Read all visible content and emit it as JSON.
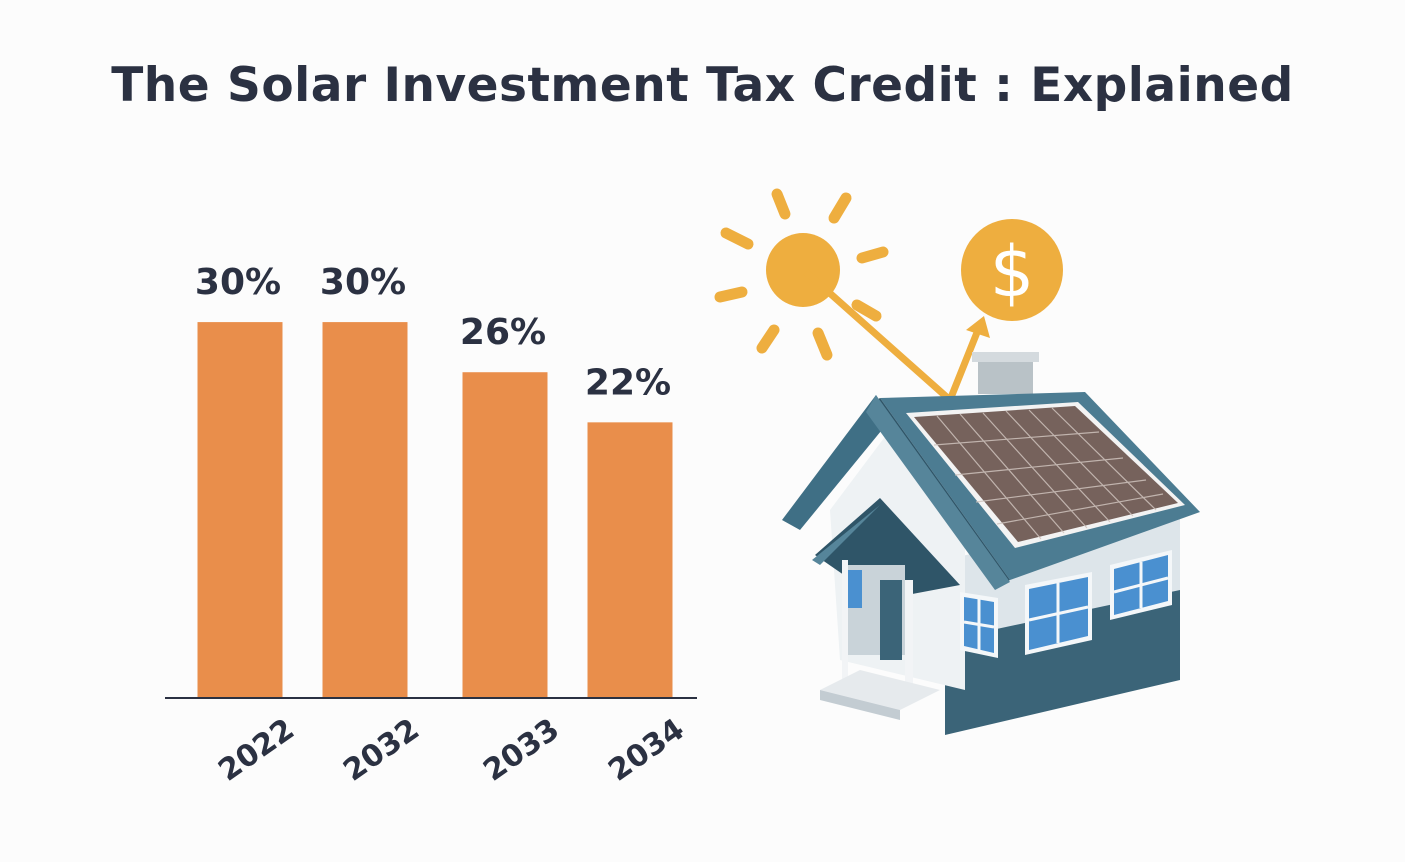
{
  "title": "The Solar Investment Tax Credit : Explained",
  "chart_data": {
    "type": "bar",
    "categories": [
      "2022",
      "2032",
      "2033",
      "2034"
    ],
    "values": [
      30,
      30,
      26,
      22
    ],
    "value_labels": [
      "30%",
      "30%",
      "26%",
      "22%"
    ],
    "unit": "%",
    "ylim": [
      0,
      30
    ],
    "grid": false,
    "legend": "none",
    "bar_color": "#e98e4b",
    "axis_color": "#2b3142",
    "label_color": "#2b3142"
  },
  "illustration": {
    "description_icons": [
      "sun-icon",
      "dollar-coin-icon",
      "house-with-solar-panels-icon"
    ],
    "coin_symbol": "$",
    "sun_color": "#eeae3f",
    "roof_color": "#3f6f85",
    "panel_color": "#76625c"
  }
}
